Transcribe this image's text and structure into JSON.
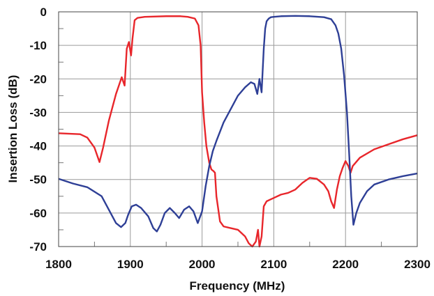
{
  "chart_data": {
    "type": "line",
    "title": "",
    "xlabel": "Frequency (MHz)",
    "ylabel": "Insertion Loss  (dB)",
    "xlim": [
      1800,
      2300
    ],
    "ylim": [
      -70,
      0
    ],
    "xticks": [
      1800,
      1900,
      2000,
      2100,
      2200,
      2300
    ],
    "yticks": [
      0,
      -10,
      -20,
      -30,
      -40,
      -50,
      -60,
      -70
    ],
    "xtick_labels": [
      "1800",
      "1900",
      "2000",
      "2100",
      "2200",
      "2300"
    ],
    "ytick_labels": [
      "0",
      "-10",
      "-20",
      "-30",
      "-40",
      "-50",
      "-60",
      "-70"
    ],
    "grid": true,
    "legend": "none",
    "series": [
      {
        "color": "#e8262b",
        "x": [
          1800,
          1830,
          1840,
          1850,
          1857,
          1862,
          1870,
          1880,
          1888,
          1892,
          1895,
          1898,
          1901,
          1903,
          1906,
          1910,
          1920,
          1950,
          1970,
          1980,
          1990,
          1995,
          1998,
          2000,
          2003,
          2006,
          2010,
          2013,
          2016,
          2018,
          2020,
          2025,
          2030,
          2040,
          2050,
          2060,
          2065,
          2070,
          2075,
          2078,
          2080,
          2083,
          2086,
          2090,
          2095,
          2100,
          2110,
          2120,
          2130,
          2140,
          2150,
          2160,
          2170,
          2176,
          2180,
          2184,
          2188,
          2192,
          2196,
          2200,
          2204,
          2207,
          2210,
          2220,
          2240,
          2260,
          2280,
          2300
        ],
        "y": [
          -36.2,
          -36.5,
          -37.5,
          -40.5,
          -44.8,
          -40.5,
          -32.5,
          -24.5,
          -19.5,
          -22,
          -11,
          -9,
          -13,
          -8,
          -2.5,
          -1.8,
          -1.5,
          -1.3,
          -1.3,
          -1.5,
          -2,
          -4,
          -10,
          -24,
          -33,
          -40,
          -45,
          -47,
          -47.5,
          -48,
          -55,
          -62.5,
          -64,
          -64.5,
          -65,
          -67,
          -69,
          -70,
          -68.5,
          -65,
          -70,
          -67,
          -58,
          -56.5,
          -56,
          -55.5,
          -54.5,
          -54,
          -53,
          -51,
          -49.5,
          -49.8,
          -51.5,
          -53.5,
          -56.5,
          -58.5,
          -53,
          -49,
          -46.5,
          -44.5,
          -46,
          -48,
          -46,
          -43.5,
          -41,
          -39.5,
          -38,
          -36.8
        ]
      },
      {
        "color": "#2e3f96",
        "x": [
          1800,
          1820,
          1840,
          1860,
          1870,
          1880,
          1887,
          1893,
          1897,
          1902,
          1908,
          1915,
          1925,
          1932,
          1937,
          1942,
          1948,
          1955,
          1962,
          1968,
          1975,
          1982,
          1988,
          1994,
          2000,
          2005,
          2010,
          2015,
          2020,
          2030,
          2040,
          2050,
          2060,
          2068,
          2073,
          2077,
          2080,
          2083,
          2086,
          2088,
          2090,
          2093,
          2096,
          2100,
          2110,
          2130,
          2150,
          2170,
          2180,
          2186,
          2190,
          2194,
          2198,
          2202,
          2205,
          2208,
          2211,
          2215,
          2220,
          2230,
          2240,
          2260,
          2280,
          2300
        ],
        "y": [
          -49.8,
          -51.2,
          -52.3,
          -55,
          -59,
          -63,
          -64.2,
          -63,
          -60.5,
          -58,
          -57.5,
          -58.5,
          -61,
          -64.5,
          -65.5,
          -63.5,
          -60,
          -58.5,
          -60,
          -61.5,
          -59,
          -58,
          -59.5,
          -63,
          -59.5,
          -52,
          -46,
          -41.5,
          -38.5,
          -33,
          -29,
          -25,
          -22.5,
          -21,
          -21.5,
          -24.5,
          -20,
          -24,
          -11,
          -5,
          -2.8,
          -2,
          -1.6,
          -1.5,
          -1.3,
          -1.2,
          -1.3,
          -1.6,
          -2.2,
          -4,
          -6.5,
          -11,
          -19,
          -30,
          -42,
          -55,
          -63.5,
          -60,
          -57,
          -53.5,
          -51.5,
          -50,
          -49,
          -48.2
        ]
      }
    ]
  }
}
